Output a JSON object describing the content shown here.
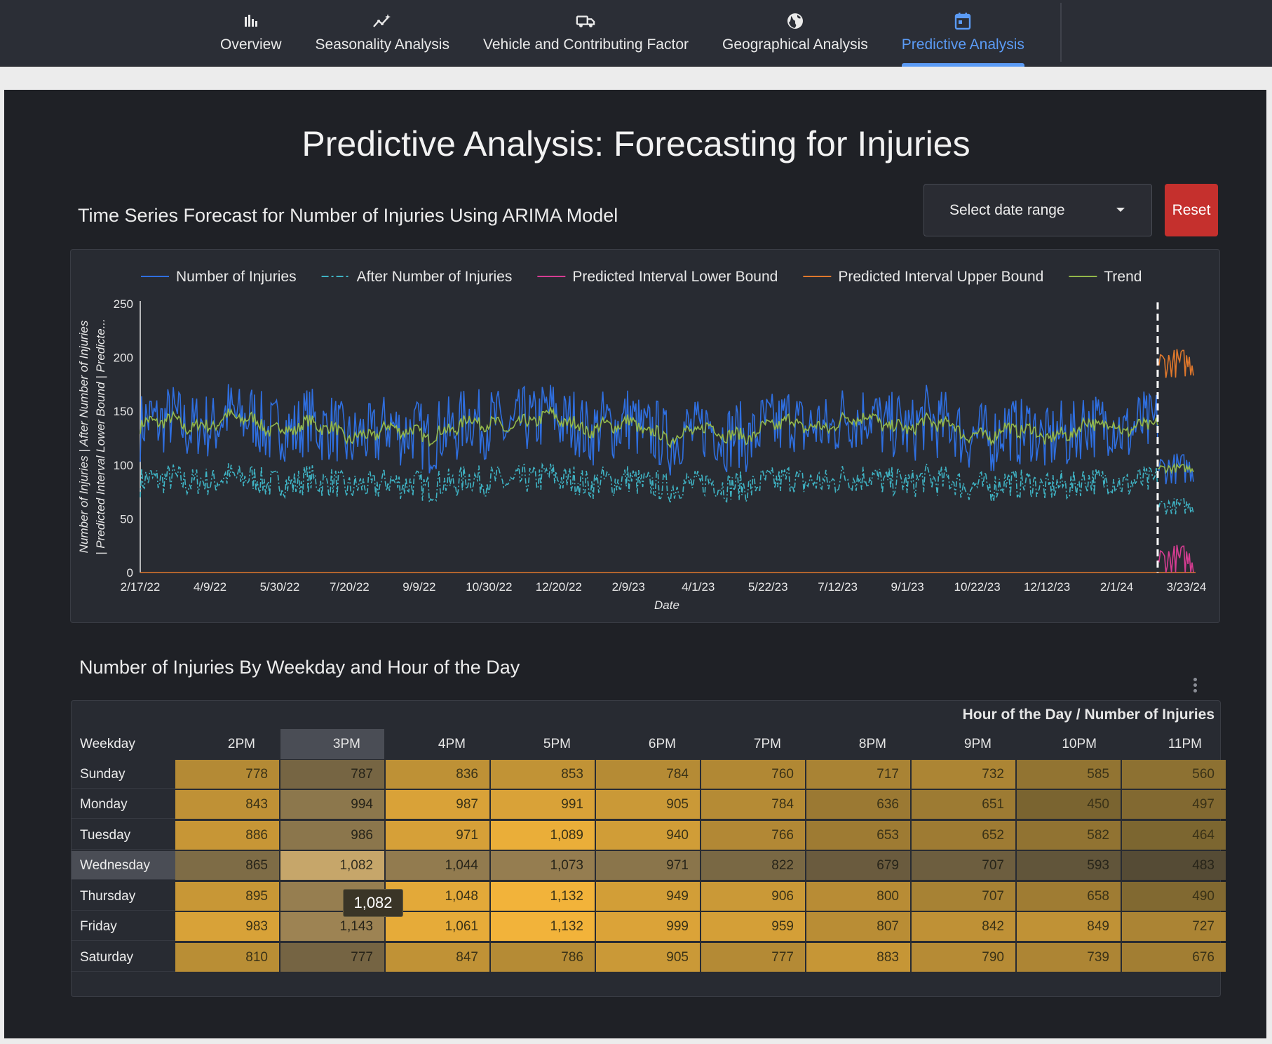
{
  "nav": {
    "tabs": [
      {
        "label": "Overview",
        "icon": "bar-chart-icon",
        "active": false
      },
      {
        "label": "Seasonality Analysis",
        "icon": "trend-sparkle-icon",
        "active": false
      },
      {
        "label": "Vehicle and Contributing Factor",
        "icon": "truck-icon",
        "active": false
      },
      {
        "label": "Geographical Analysis",
        "icon": "globe-icon",
        "active": false
      },
      {
        "label": "Predictive Analysis",
        "icon": "calendar-icon",
        "active": true
      }
    ],
    "active_color": "#5b9bf5"
  },
  "page": {
    "title": "Predictive Analysis: Forecasting for Injuries"
  },
  "timeseries": {
    "title": "Time Series Forecast for Number of Injuries Using ARIMA Model",
    "date_range_placeholder": "Select date range",
    "reset_label": "Reset",
    "reset_color": "#c5302d"
  },
  "chart_data": {
    "type": "line",
    "x_axis": {
      "label": "Date",
      "tick_labels": [
        "2/17/22",
        "4/9/22",
        "5/30/22",
        "7/20/22",
        "9/9/22",
        "10/30/22",
        "12/20/22",
        "2/9/23",
        "4/1/23",
        "5/22/23",
        "7/12/23",
        "9/1/23",
        "10/22/23",
        "12/12/23",
        "2/1/24",
        "3/23/24"
      ],
      "range": [
        "2/17/22",
        "3/23/24"
      ]
    },
    "y_axis": {
      "label_line1": "Number of Injuries | After Number of Injuries",
      "label_line2": "| Predicted Interval Lower Bound | Predicte...",
      "ticks": [
        0,
        50,
        100,
        150,
        200,
        250
      ],
      "ylim": [
        0,
        250
      ]
    },
    "grid": false,
    "legend_position": "top",
    "forecast_start": "2/26/24",
    "series": [
      {
        "name": "Number of Injuries",
        "color": "#2f6fe0",
        "style": "solid",
        "history_level": 135,
        "history_amplitude": 32,
        "forecast_level": 97,
        "forecast_amplitude": 15
      },
      {
        "name": "After Number of Injuries",
        "color": "#3fb3c4",
        "style": "dashdot",
        "history_level": 84,
        "history_amplitude": 14,
        "forecast_level": 62,
        "forecast_amplitude": 8
      },
      {
        "name": "Predicted Interval Lower Bound",
        "color": "#d63c92",
        "style": "solid",
        "forecast_level": 12,
        "forecast_amplitude": 15
      },
      {
        "name": "Predicted Interval Upper Bound",
        "color": "#e0782c",
        "style": "solid",
        "forecast_level": 195,
        "forecast_amplitude": 14
      },
      {
        "name": "Trend",
        "color": "#93b84a",
        "style": "solid",
        "history_level": 135,
        "history_amplitude": 14,
        "forecast_level": 97,
        "forecast_amplitude": 4
      }
    ]
  },
  "heatmap": {
    "title": "Number of Injuries By Weekday and Hour of the Day",
    "header": "Hour of the Day / Number of Injuries",
    "row_header": "Weekday",
    "columns": [
      "2PM",
      "3PM",
      "4PM",
      "5PM",
      "6PM",
      "7PM",
      "8PM",
      "9PM",
      "10PM",
      "11PM"
    ],
    "rows": [
      {
        "day": "Sunday",
        "values": [
          "778",
          "787",
          "836",
          "853",
          "784",
          "760",
          "717",
          "732",
          "585",
          "560"
        ]
      },
      {
        "day": "Monday",
        "values": [
          "843",
          "994",
          "987",
          "991",
          "905",
          "784",
          "636",
          "651",
          "450",
          "497"
        ]
      },
      {
        "day": "Tuesday",
        "values": [
          "886",
          "986",
          "971",
          "1,089",
          "940",
          "766",
          "653",
          "652",
          "582",
          "464"
        ]
      },
      {
        "day": "Wednesday",
        "values": [
          "865",
          "1,082",
          "1,044",
          "1,073",
          "971",
          "822",
          "679",
          "707",
          "593",
          "483"
        ]
      },
      {
        "day": "Thursday",
        "values": [
          "895",
          "",
          "1,048",
          "1,132",
          "949",
          "906",
          "800",
          "707",
          "658",
          "490"
        ]
      },
      {
        "day": "Friday",
        "values": [
          "983",
          "1,143",
          "1,061",
          "1,132",
          "999",
          "959",
          "807",
          "842",
          "849",
          "727"
        ]
      },
      {
        "day": "Saturday",
        "values": [
          "810",
          "777",
          "847",
          "786",
          "905",
          "777",
          "883",
          "790",
          "739",
          "676"
        ]
      }
    ],
    "color_low": "#7a6430",
    "color_high": "#f4b43a",
    "highlight_row": "Wednesday",
    "highlight_column": "3PM",
    "tooltip": "1,082"
  }
}
